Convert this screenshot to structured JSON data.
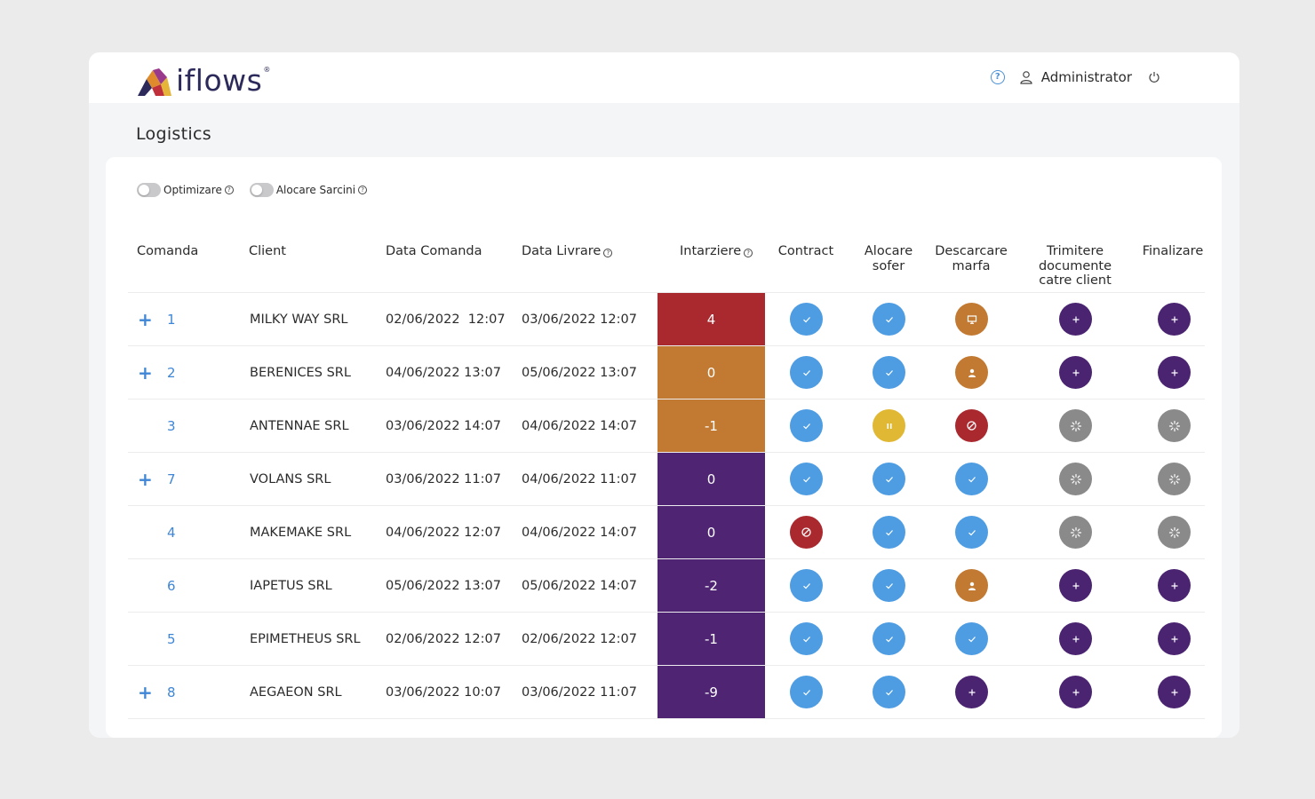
{
  "app": {
    "logo_text": "iflows",
    "logo_reg": "®",
    "user_name": "Administrator",
    "page_title": "Logistics"
  },
  "colors": {
    "accent": "#3f86d6",
    "status_blue": "#4e9de3",
    "status_orange": "#c27a32",
    "status_purple": "#4a2470",
    "status_red": "#a9292f",
    "status_yellow": "#e0b833",
    "status_gray": "#8a8a8a",
    "delay_red": "#a9292f",
    "delay_orange": "#c27a32",
    "delay_purple": "#4f2573"
  },
  "toggles": [
    {
      "label": "Optimizare",
      "on": false
    },
    {
      "label": "Alocare Sarcini",
      "on": false
    }
  ],
  "columns": {
    "comanda": "Comanda",
    "client": "Client",
    "data_comanda": "Data Comanda",
    "data_livrare": "Data Livrare",
    "intarziere": "Intarziere",
    "contract": "Contract",
    "alocare_sofer": [
      "Alocare",
      "sofer"
    ],
    "descarcare_marfa": [
      "Descarcare",
      "marfa"
    ],
    "trimitere_documente": [
      "Trimitere",
      "documente",
      "catre client"
    ],
    "finalizare": "Finalizare"
  },
  "rows": [
    {
      "expandable": true,
      "id": "1",
      "client": "MILKY WAY SRL",
      "data_comanda": "02/06/2022  12:07",
      "data_livrare": "03/06/2022 12:07",
      "delay": "4",
      "delay_color": "delay_red",
      "statuses": [
        "done-check",
        "done-check",
        "monitor-icon",
        "plus-icon",
        "plus-icon"
      ]
    },
    {
      "expandable": true,
      "id": "2",
      "client": "BERENICES SRL",
      "data_comanda": "04/06/2022 13:07",
      "data_livrare": "05/06/2022 13:07",
      "delay": "0",
      "delay_color": "delay_orange",
      "statuses": [
        "done-check",
        "done-check",
        "person-icon",
        "plus-icon",
        "plus-icon"
      ]
    },
    {
      "expandable": false,
      "id": "3",
      "client": "ANTENNAE SRL",
      "data_comanda": "03/06/2022 14:07",
      "data_livrare": "04/06/2022 14:07",
      "delay": "-1",
      "delay_color": "delay_orange",
      "statuses": [
        "done-check",
        "pause-icon",
        "blocked-icon",
        "loading-icon",
        "loading-icon"
      ]
    },
    {
      "expandable": true,
      "id": "7",
      "client": "VOLANS SRL",
      "data_comanda": "03/06/2022 11:07",
      "data_livrare": "04/06/2022 11:07",
      "delay": "0",
      "delay_color": "delay_purple",
      "statuses": [
        "done-check",
        "done-check",
        "done-check",
        "loading-icon",
        "loading-icon"
      ]
    },
    {
      "expandable": false,
      "id": "4",
      "client": "MAKEMAKE SRL",
      "data_comanda": "04/06/2022 12:07",
      "data_livrare": "04/06/2022 14:07",
      "delay": "0",
      "delay_color": "delay_purple",
      "statuses": [
        "blocked-icon",
        "done-check",
        "done-check",
        "loading-icon",
        "loading-icon"
      ]
    },
    {
      "expandable": false,
      "id": "6",
      "client": "IAPETUS SRL",
      "data_comanda": "05/06/2022 13:07",
      "data_livrare": "05/06/2022 14:07",
      "delay": "-2",
      "delay_color": "delay_purple",
      "statuses": [
        "done-check",
        "done-check",
        "person-icon",
        "plus-icon",
        "plus-icon"
      ]
    },
    {
      "expandable": false,
      "id": "5",
      "client": "EPIMETHEUS SRL",
      "data_comanda": "02/06/2022 12:07",
      "data_livrare": "02/06/2022 12:07",
      "delay": "-1",
      "delay_color": "delay_purple",
      "statuses": [
        "done-check",
        "done-check",
        "done-check",
        "plus-icon",
        "plus-icon"
      ]
    },
    {
      "expandable": true,
      "id": "8",
      "client": "AEGAEON SRL",
      "data_comanda": "03/06/2022 10:07",
      "data_livrare": "03/06/2022 11:07",
      "delay": "-9",
      "delay_color": "delay_purple",
      "statuses": [
        "done-check",
        "done-check",
        "plus-icon",
        "plus-icon",
        "plus-icon"
      ]
    }
  ]
}
